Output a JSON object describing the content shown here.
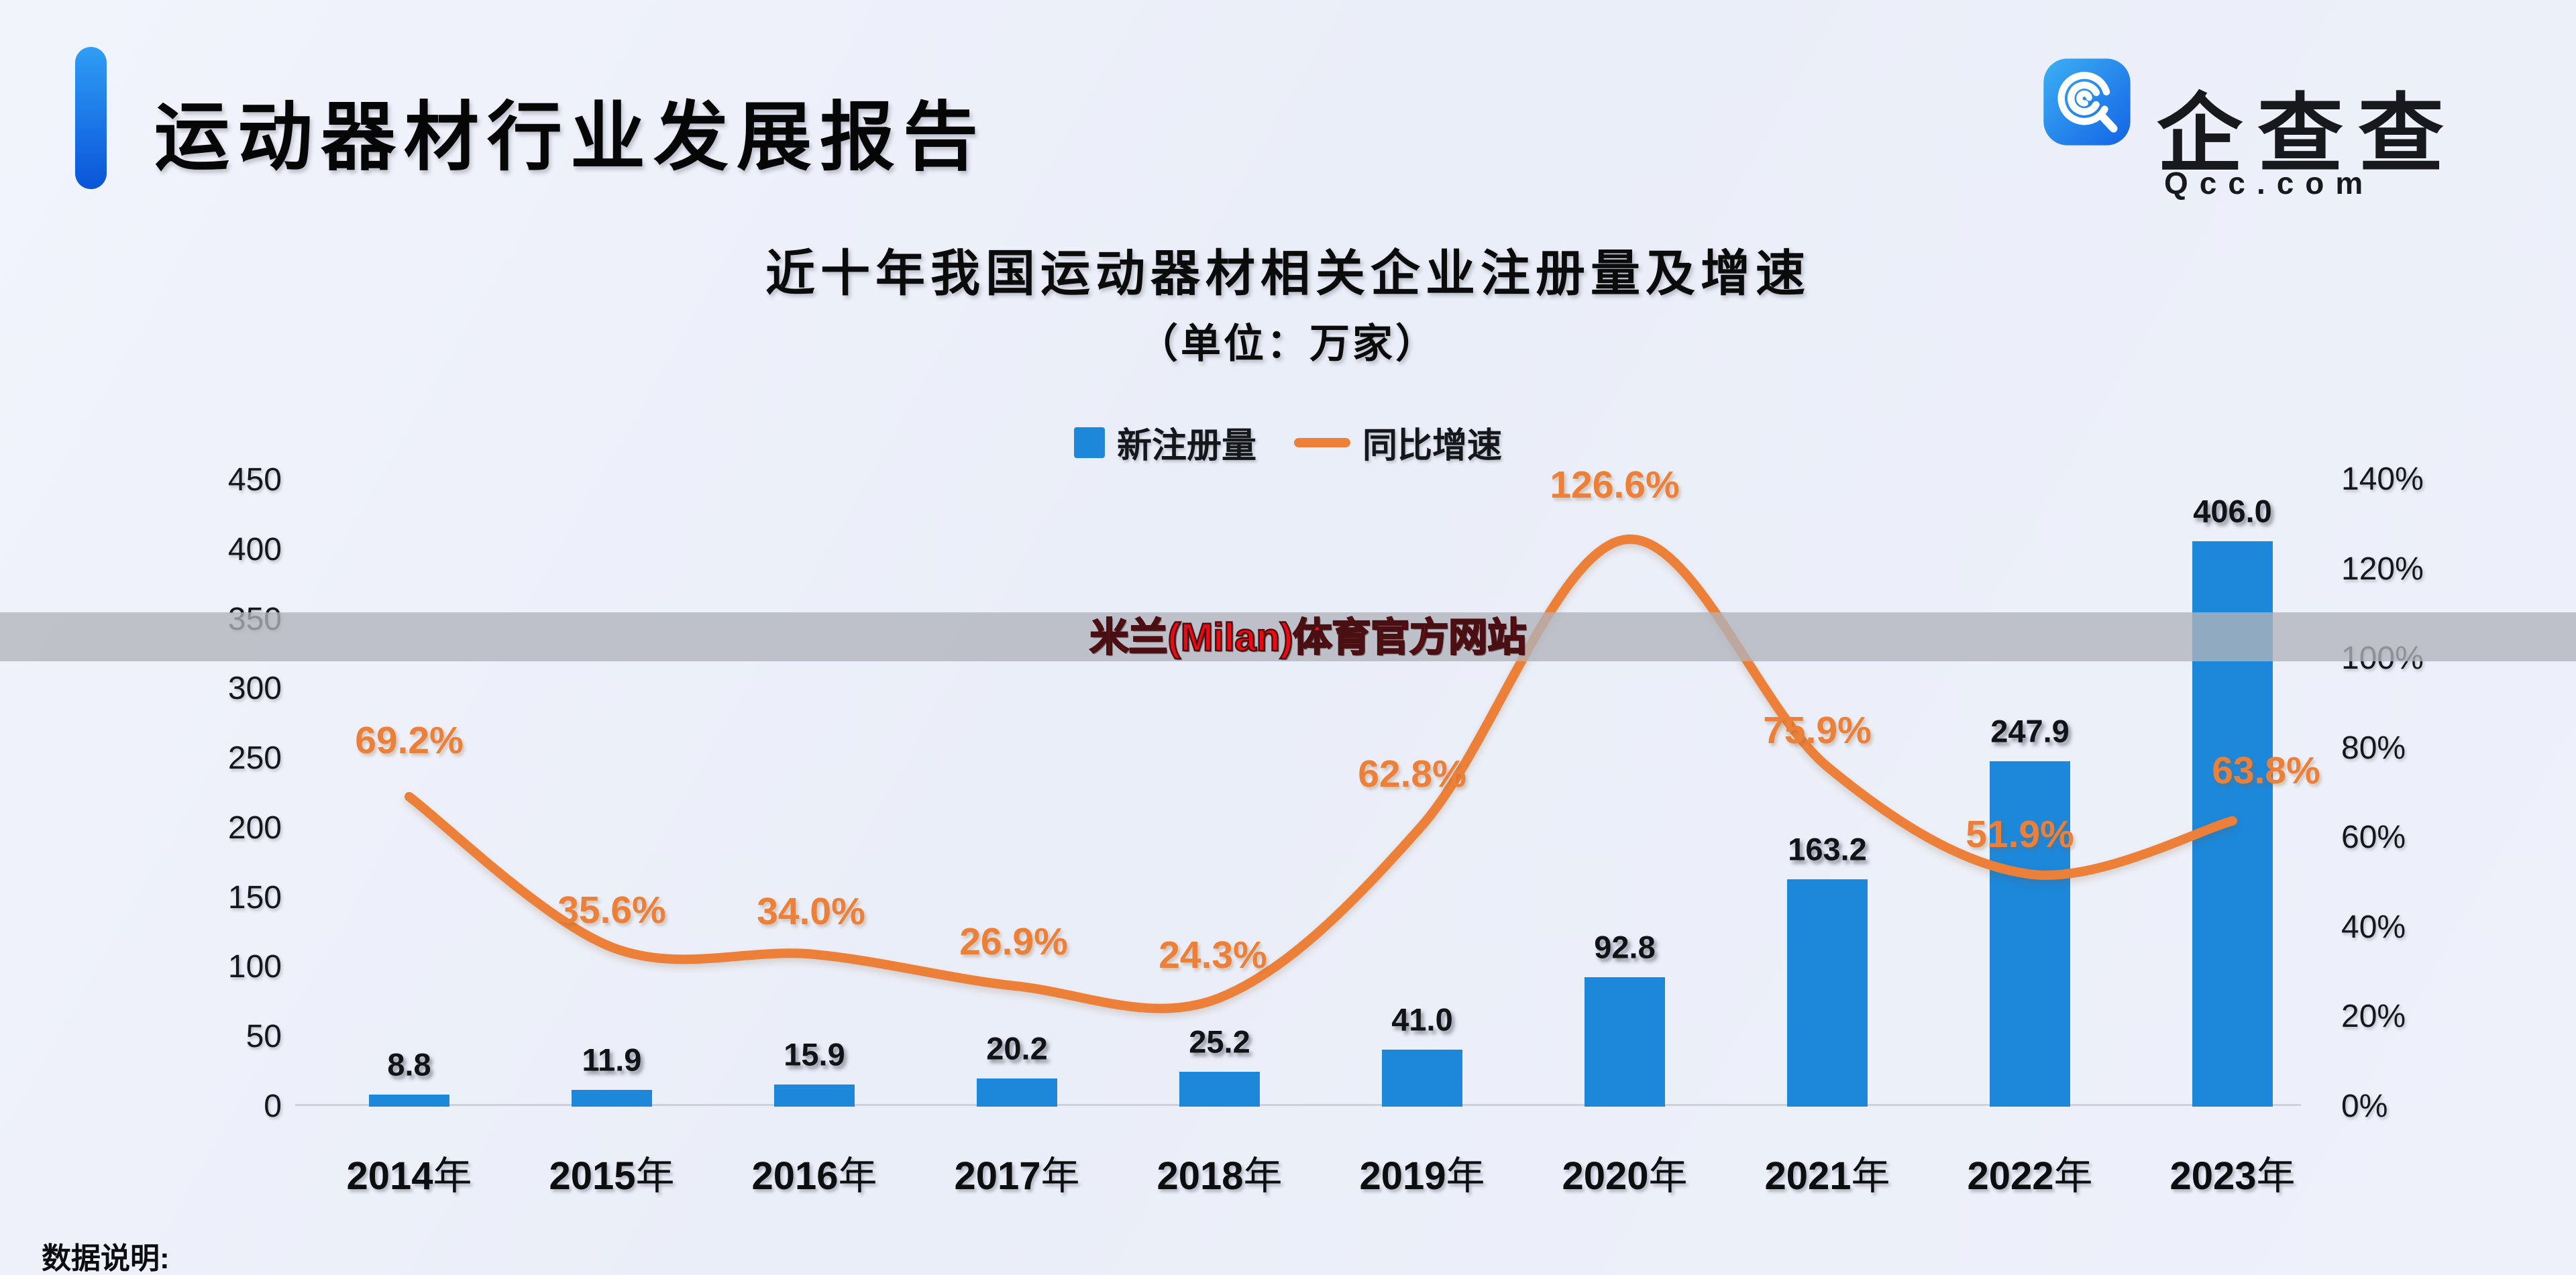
{
  "header": {
    "title": "运动器材行业发展报告"
  },
  "logo": {
    "text": "企查查",
    "domain": "Qcc.com",
    "icon_color_top": "#38acf3",
    "icon_color_bottom": "#1463e4"
  },
  "watermark": {
    "text": "米兰(Milan)体育官方网站",
    "text_color": "#ee0a12",
    "band_color": "#b1b4bb"
  },
  "footer": {
    "note": "数据说明:"
  },
  "colors": {
    "bar_blue": "#1d87d9",
    "line_orange": "#ed8039",
    "header_accent": "#0a54d8"
  },
  "chart_data": {
    "type": "bar+line",
    "title": "近十年我国运动器材相关企业注册量及增速",
    "unit_label": "（单位：万家）",
    "categories": [
      "2014年",
      "2015年",
      "2016年",
      "2017年",
      "2018年",
      "2019年",
      "2020年",
      "2021年",
      "2022年",
      "2023年"
    ],
    "series": [
      {
        "name": "新注册量",
        "type": "bar",
        "axis": "left",
        "color": "#1d87d9",
        "values": [
          8.8,
          11.9,
          15.9,
          20.2,
          25.2,
          41.0,
          92.8,
          163.2,
          247.9,
          406.0
        ],
        "labels": [
          "8.8",
          "11.9",
          "15.9",
          "20.2",
          "25.2",
          "41.0",
          "92.8",
          "163.2",
          "247.9",
          "406.0"
        ]
      },
      {
        "name": "同比增速",
        "type": "line",
        "axis": "right",
        "color": "#ed8039",
        "values": [
          69.2,
          35.6,
          34.0,
          26.9,
          24.3,
          62.8,
          126.6,
          75.9,
          51.9,
          63.8
        ],
        "labels": [
          "69.2%",
          "35.6%",
          "34.0%",
          "26.9%",
          "24.3%",
          "62.8%",
          "126.6%",
          "75.9%",
          "51.9%",
          "63.8%"
        ]
      }
    ],
    "left_axis": {
      "range": [
        0,
        450
      ],
      "ticks": [
        0,
        50,
        100,
        150,
        200,
        250,
        300,
        350,
        400,
        450
      ],
      "tick_labels": [
        "0",
        "50",
        "100",
        "150",
        "200",
        "250",
        "300",
        "350",
        "400",
        "450"
      ]
    },
    "right_axis": {
      "range": [
        0,
        140
      ],
      "ticks": [
        0,
        20,
        40,
        60,
        80,
        100,
        120,
        140
      ],
      "tick_labels": [
        "0%",
        "20%",
        "40%",
        "60%",
        "80%",
        "100%",
        "120%",
        "140%"
      ]
    },
    "grid": false,
    "legend_position": "top-center"
  }
}
